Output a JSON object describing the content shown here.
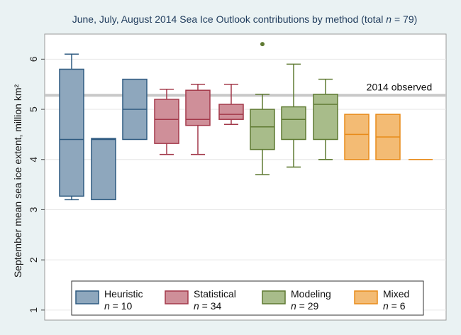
{
  "chart_data": {
    "type": "box",
    "title_prefix": "June, July, August 2014 Sea Ice Outlook contributions by method (total ",
    "title_n_symbol": "n",
    "title_suffix": " = 79)",
    "ylabel": "September mean sea ice extent, million km²",
    "xlabel": "",
    "ylim": [
      0.8,
      6.5
    ],
    "yticks": [
      "1",
      "2",
      "3",
      "4",
      "5",
      "6"
    ],
    "grid": true,
    "legend_position": "bottom",
    "reference_line": {
      "value": 5.28,
      "label": "2014 observed",
      "color": "#c8c8c8"
    },
    "groups": [
      {
        "name": "Heuristic",
        "n_label": " = 10",
        "fill": "#8ea7bd",
        "stroke": "#2e5a80"
      },
      {
        "name": "Statistical",
        "n_label": " = 34",
        "fill": "#cf8f99",
        "stroke": "#a3394a"
      },
      {
        "name": "Modeling",
        "n_label": " = 29",
        "fill": "#a8bc8a",
        "stroke": "#5f7a32"
      },
      {
        "name": "Mixed",
        "n_label": " = 6",
        "fill": "#f3bb74",
        "stroke": "#e88b1a"
      }
    ],
    "boxes": [
      {
        "group": 0,
        "min": 3.2,
        "q1": 3.27,
        "median": 4.4,
        "q3": 5.8,
        "max": 6.1
      },
      {
        "group": 0,
        "min": 3.2,
        "q1": 3.2,
        "median": 4.4,
        "q3": 4.42,
        "max": 4.42
      },
      {
        "group": 0,
        "min": 4.4,
        "q1": 4.4,
        "median": 5.0,
        "q3": 5.6,
        "max": 5.6
      },
      {
        "group": 1,
        "min": 4.1,
        "q1": 4.32,
        "median": 4.8,
        "q3": 5.2,
        "max": 5.4
      },
      {
        "group": 1,
        "min": 4.1,
        "q1": 4.68,
        "median": 4.8,
        "q3": 5.38,
        "max": 5.5
      },
      {
        "group": 1,
        "min": 4.7,
        "q1": 4.8,
        "median": 4.9,
        "q3": 5.1,
        "max": 5.5
      },
      {
        "group": 2,
        "min": 3.7,
        "q1": 4.2,
        "median": 4.65,
        "q3": 5.0,
        "max": 5.3,
        "outliers": [
          6.3
        ]
      },
      {
        "group": 2,
        "min": 3.85,
        "q1": 4.4,
        "median": 4.8,
        "q3": 5.05,
        "max": 5.9
      },
      {
        "group": 2,
        "min": 4.0,
        "q1": 4.4,
        "median": 5.1,
        "q3": 5.3,
        "max": 5.6
      },
      {
        "group": 3,
        "min": 4.0,
        "q1": 4.0,
        "median": 4.5,
        "q3": 4.9,
        "max": 4.9
      },
      {
        "group": 3,
        "min": 4.0,
        "q1": 4.0,
        "median": 4.45,
        "q3": 4.9,
        "max": 4.9
      },
      {
        "group": 3,
        "min": 4.0,
        "q1": 4.0,
        "median": 4.0,
        "q3": 4.0,
        "max": 4.0
      }
    ]
  }
}
